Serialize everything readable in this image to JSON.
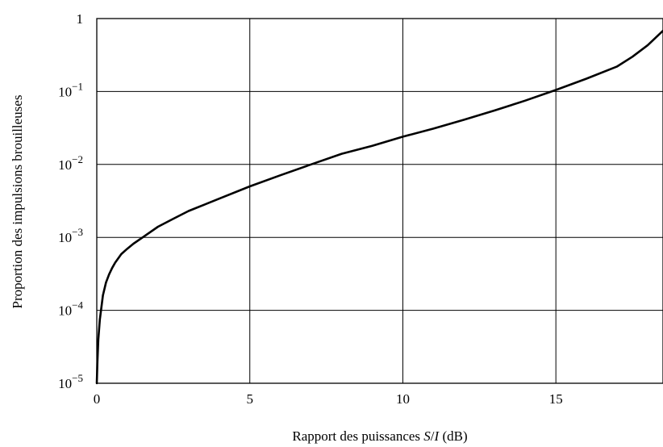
{
  "chart_data": {
    "type": "line",
    "xlabel_parts": [
      "Rapport des puissances ",
      "S",
      "/",
      "I",
      " (dB)"
    ],
    "ylabel": "Proportion des impulsions brouilleuses",
    "xlim": [
      0,
      18.5
    ],
    "ylim": [
      1e-05,
      1
    ],
    "y_scale": "log",
    "grid": true,
    "x_ticks": [
      {
        "value": 0,
        "label": "0"
      },
      {
        "value": 5,
        "label": "5"
      },
      {
        "value": 10,
        "label": "10"
      },
      {
        "value": 15,
        "label": "15"
      }
    ],
    "y_ticks": [
      {
        "value": 1,
        "base": "1",
        "exp": ""
      },
      {
        "value": 0.1,
        "base": "10",
        "exp": "−1"
      },
      {
        "value": 0.01,
        "base": "10",
        "exp": "−2"
      },
      {
        "value": 0.001,
        "base": "10",
        "exp": "−3"
      },
      {
        "value": 0.0001,
        "base": "10",
        "exp": "−4"
      },
      {
        "value": 1e-05,
        "base": "10",
        "exp": "−5"
      }
    ],
    "series": [
      {
        "x": [
          0,
          0.02,
          0.05,
          0.1,
          0.2,
          0.3,
          0.4,
          0.5,
          0.6,
          0.8,
          1.0,
          1.2,
          1.5,
          2.0,
          2.5,
          3.0,
          4.0,
          5.0,
          6.0,
          7.0,
          8.0,
          9.0,
          10.0,
          11.0,
          12.0,
          13.0,
          14.0,
          15.0,
          16.0,
          17.0,
          17.5,
          18.0,
          18.5
        ],
        "y": [
          1e-05,
          2e-05,
          4e-05,
          7.5e-05,
          0.00016,
          0.00024,
          0.00031,
          0.00038,
          0.00045,
          0.00059,
          0.0007,
          0.00082,
          0.001,
          0.0014,
          0.0018,
          0.0023,
          0.0034,
          0.005,
          0.0071,
          0.01,
          0.014,
          0.018,
          0.024,
          0.031,
          0.041,
          0.055,
          0.075,
          0.105,
          0.15,
          0.22,
          0.3,
          0.43,
          0.68
        ]
      }
    ]
  }
}
